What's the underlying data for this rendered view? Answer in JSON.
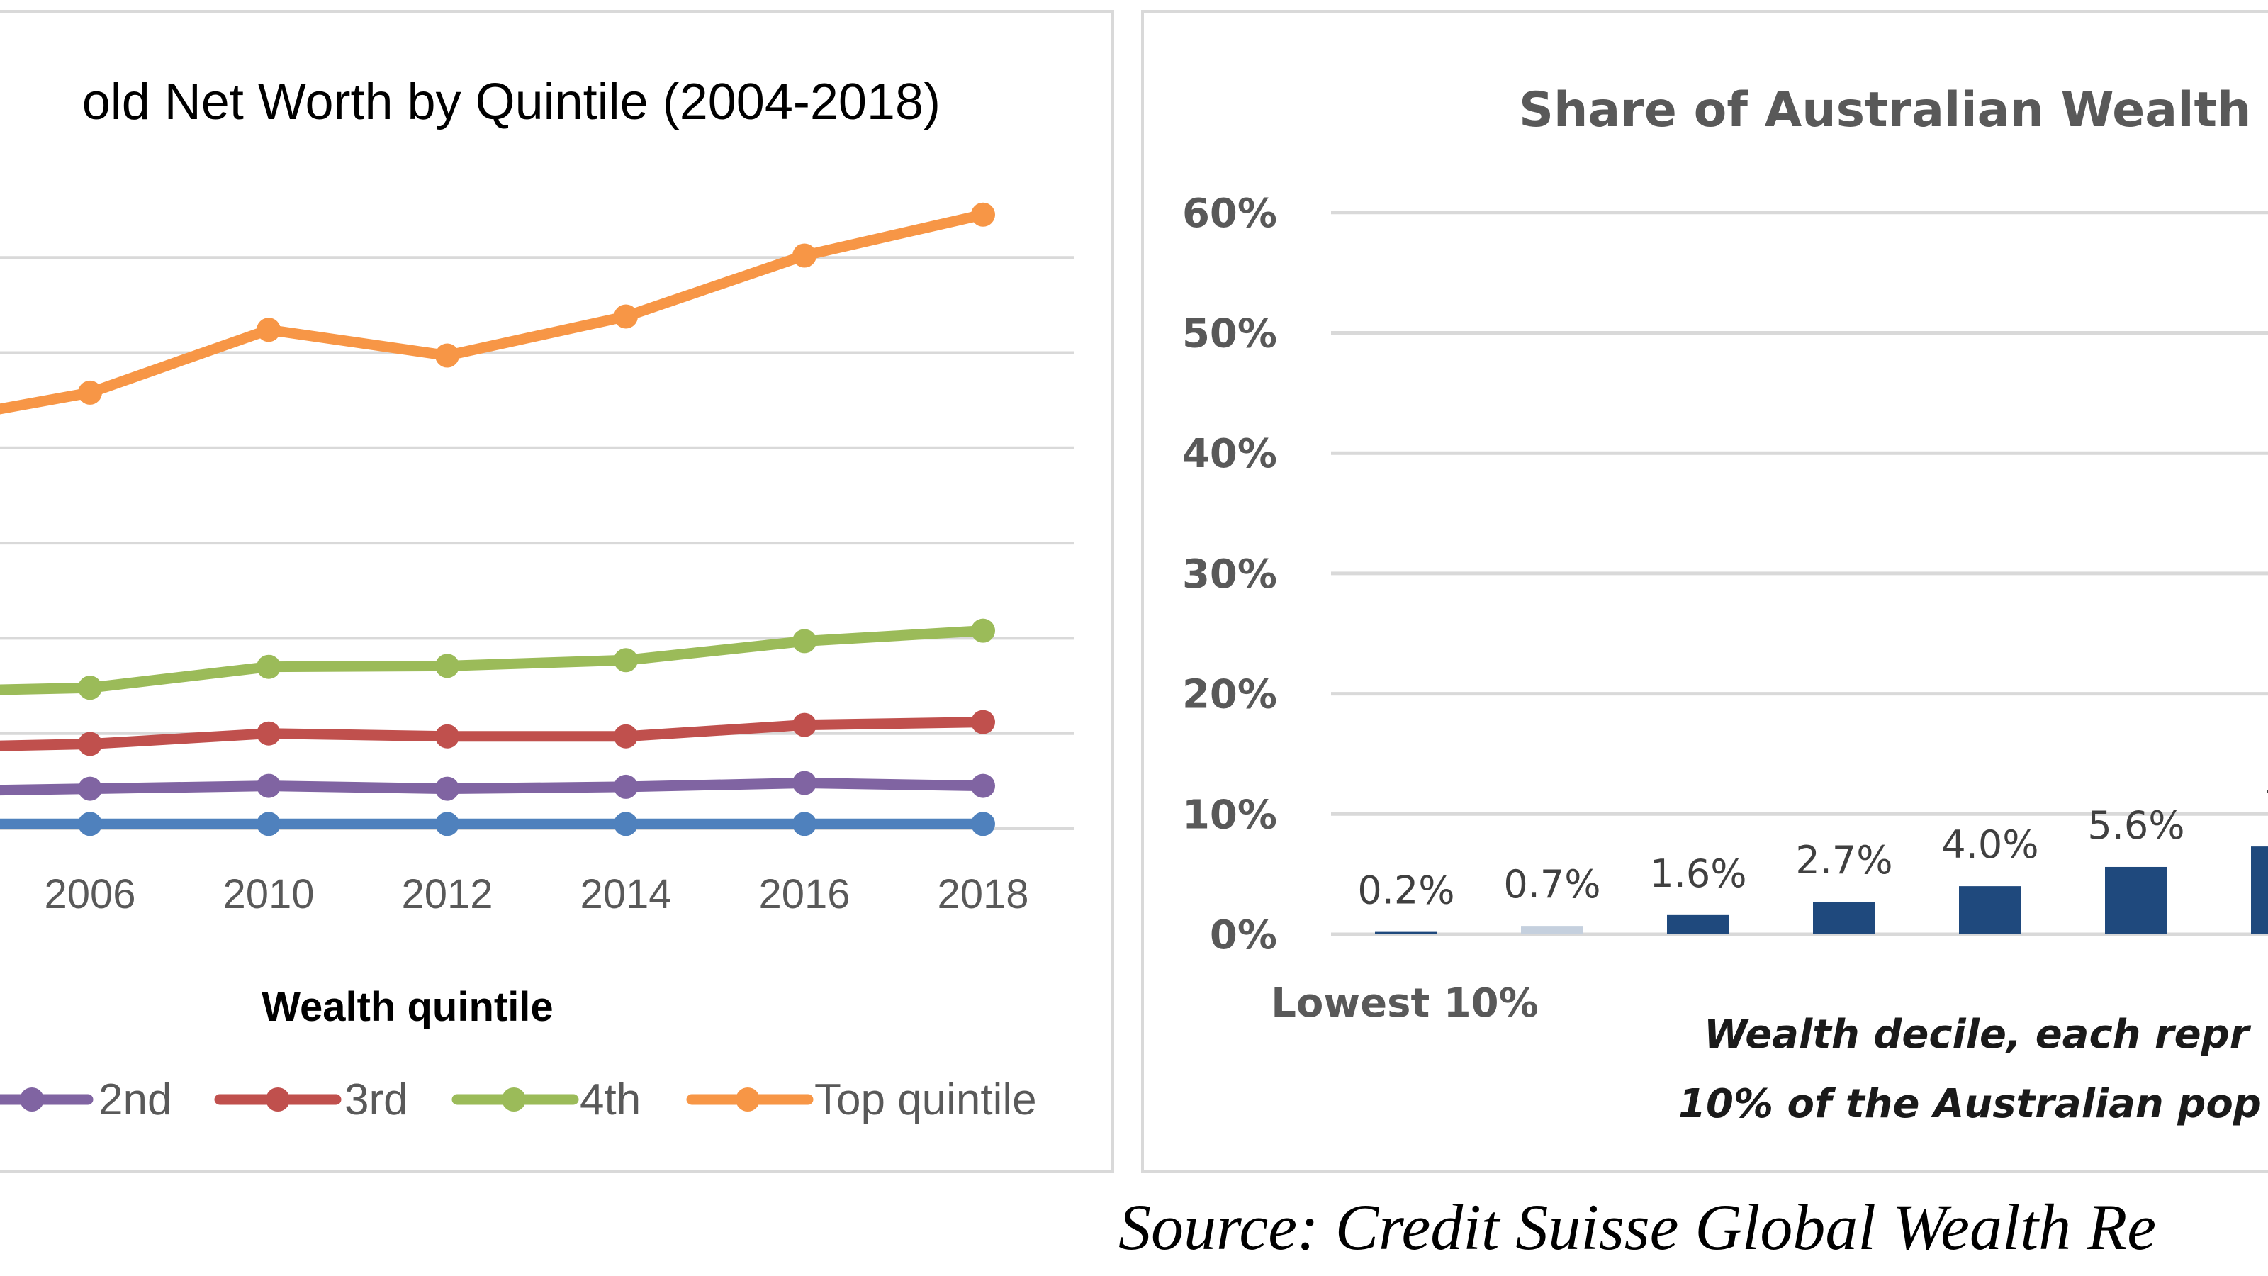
{
  "chart_data": [
    {
      "type": "line",
      "title": "old Net Worth by Quintile (2004-2018)",
      "xlabel": "Wealth quintile",
      "ylabel": "",
      "y_units": "gridline intervals (axis labels not visible)",
      "ylim": [
        0,
        6.6
      ],
      "grid": true,
      "legend_position": "bottom",
      "x": [
        "2006",
        "2010",
        "2012",
        "2014",
        "2016",
        "2018"
      ],
      "series": [
        {
          "name": "",
          "color": "#4F81BD",
          "clipped_start_value": 0.05,
          "values": [
            0.05,
            0.05,
            0.05,
            0.05,
            0.05,
            0.05
          ]
        },
        {
          "name": "2nd",
          "color": "#8064A2",
          "clipped_start_value": 0.39,
          "values": [
            0.42,
            0.45,
            0.42,
            0.44,
            0.48,
            0.45
          ]
        },
        {
          "name": "3rd",
          "color": "#C0504D",
          "clipped_start_value": 0.85,
          "values": [
            0.89,
            1.0,
            0.97,
            0.97,
            1.09,
            1.12
          ]
        },
        {
          "name": "4th",
          "color": "#9BBB59",
          "clipped_start_value": 1.44,
          "values": [
            1.48,
            1.7,
            1.71,
            1.77,
            1.97,
            2.08
          ]
        },
        {
          "name": "Top quintile",
          "color": "#F79646",
          "clipped_start_value": 4.24,
          "values": [
            4.58,
            5.24,
            4.97,
            5.38,
            6.02,
            6.45
          ]
        }
      ]
    },
    {
      "type": "bar",
      "title": "Share of Australian Wealth",
      "xlabel_lines": [
        "Wealth decile, each repr",
        "10% of the Australian pop"
      ],
      "first_category_label": "Lowest 10%",
      "ylim": [
        0,
        60
      ],
      "yticks": [
        "0%",
        "10%",
        "20%",
        "30%",
        "40%",
        "50%",
        "60%"
      ],
      "ytick_values": [
        0,
        10,
        20,
        30,
        40,
        50,
        60
      ],
      "grid": true,
      "bar_color": "#1F497D",
      "values": [
        0.2,
        0.7,
        1.6,
        2.7,
        4.0,
        5.6,
        7.3
      ],
      "data_labels": [
        "0.2%",
        "0.7%",
        "1.6%",
        "2.7%",
        "4.0%",
        "5.6%",
        "7."
      ]
    }
  ],
  "source": "Source: Credit Suisse Global Wealth Re"
}
